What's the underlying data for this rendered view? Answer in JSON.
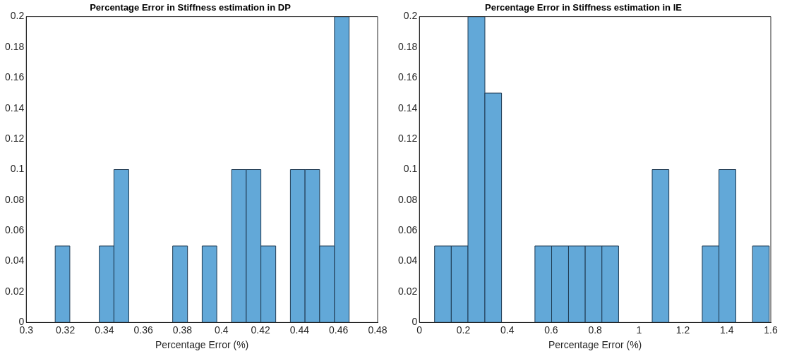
{
  "chart_data": [
    {
      "type": "histogram",
      "title": "Percentage Error in Stiffness estimation in DP",
      "xlabel": "Percentage Error (%)",
      "color": "#62a8d8",
      "bins": [
        0.3148,
        0.3223,
        0.3299,
        0.3374,
        0.3449,
        0.3525,
        0.36,
        0.3675,
        0.375,
        0.3826,
        0.3901,
        0.3976,
        0.4052,
        0.4127,
        0.4202,
        0.4278,
        0.4353,
        0.4428,
        0.4503,
        0.4579,
        0.4654
      ],
      "values": [
        0.05,
        0,
        0,
        0.05,
        0.1,
        0,
        0,
        0,
        0.05,
        0,
        0.05,
        0,
        0.1,
        0.1,
        0.05,
        0,
        0.1,
        0.1,
        0.05,
        0.2
      ],
      "xlim": [
        0.3,
        0.48
      ],
      "xticks": [
        0.3,
        0.32,
        0.34,
        0.36,
        0.38,
        0.4,
        0.42,
        0.44,
        0.46,
        0.48
      ],
      "ylim": [
        0,
        0.2
      ],
      "yticks": [
        0,
        0.02,
        0.04,
        0.06,
        0.08,
        0.1,
        0.12,
        0.14,
        0.16,
        0.18,
        0.2
      ]
    },
    {
      "type": "histogram",
      "title": "Percentage Error in Stiffness estimation in IE",
      "xlabel": "Percentage Error (%)",
      "color": "#62a8d8",
      "bins": [
        0.069,
        0.145,
        0.221,
        0.298,
        0.374,
        0.45,
        0.526,
        0.602,
        0.679,
        0.755,
        0.831,
        0.907,
        0.983,
        1.06,
        1.136,
        1.212,
        1.288,
        1.364,
        1.441,
        1.517,
        1.593
      ],
      "values": [
        0.05,
        0.05,
        0.2,
        0.15,
        0,
        0,
        0.05,
        0.05,
        0.05,
        0.05,
        0.05,
        0,
        0,
        0.1,
        0,
        0,
        0.05,
        0.1,
        0,
        0.05
      ],
      "xlim": [
        0,
        1.6
      ],
      "xticks": [
        0,
        0.2,
        0.4,
        0.6,
        0.8,
        1,
        1.2,
        1.4,
        1.6
      ],
      "ylim": [
        0,
        0.2
      ],
      "yticks": [
        0,
        0.02,
        0.04,
        0.06,
        0.08,
        0.1,
        0.12,
        0.14,
        0.16,
        0.18,
        0.2
      ]
    }
  ]
}
